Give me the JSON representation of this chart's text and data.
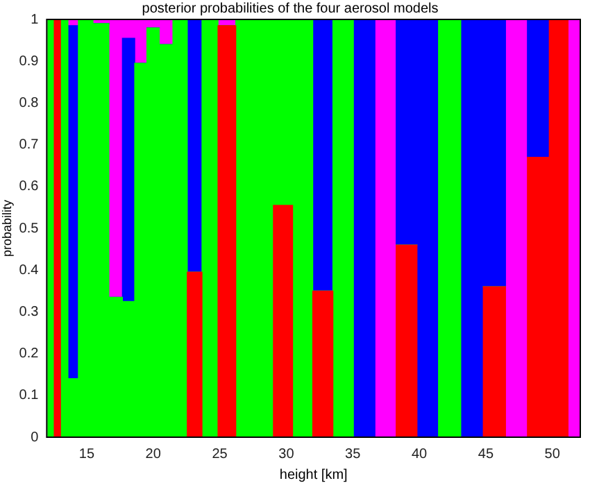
{
  "chart_data": {
    "type": "bar",
    "stacked": true,
    "title": "posterior probabilities of the four aerosol models",
    "xlabel": "height [km]",
    "ylabel": "probability",
    "x": [
      12.32,
      12.8,
      13.26,
      13.92,
      14.83,
      16.11,
      17.23,
      18.14,
      19.08,
      19.97,
      20.94,
      22.02,
      23.1,
      24.23,
      25.51,
      26.9,
      28.34,
      29.73,
      31.22,
      32.76,
      34.25,
      35.84,
      37.49,
      39.03,
      40.62,
      42.27,
      43.96,
      45.66,
      47.3,
      48.95,
      50.59,
      51.77
    ],
    "series": [
      {
        "color": "#ff0000",
        "values": [
          0,
          1,
          0,
          0,
          0,
          0,
          0,
          0,
          0,
          0,
          0,
          0,
          0.395,
          0,
          0.985,
          0,
          0,
          0.555,
          0,
          0.35,
          0,
          0,
          0,
          0.46,
          0,
          0,
          0,
          0.36,
          0,
          0.67,
          1,
          0
        ]
      },
      {
        "color": "#00ff00",
        "values": [
          1,
          0,
          1,
          0.14,
          1,
          0.99,
          0.335,
          0.325,
          0.895,
          0.98,
          0.94,
          1,
          0,
          1,
          0,
          1,
          1,
          0.445,
          1,
          0,
          1,
          0,
          0,
          0,
          0,
          1,
          0,
          0,
          0,
          0,
          0,
          0
        ]
      },
      {
        "color": "#0000ff",
        "values": [
          0,
          0,
          0,
          0.845,
          0,
          0,
          0,
          0.63,
          0,
          0,
          0,
          0,
          0.605,
          0,
          0,
          0,
          0,
          0,
          0,
          0.65,
          0,
          1,
          0,
          0.54,
          1,
          0,
          1,
          0.64,
          0,
          0.33,
          0,
          0
        ]
      },
      {
        "color": "#ff00ff",
        "values": [
          0,
          0,
          0,
          0.015,
          0,
          0.01,
          0.665,
          0.045,
          0.105,
          0.02,
          0.06,
          0,
          0,
          0,
          0.015,
          0,
          0,
          0,
          0,
          0,
          0,
          0,
          1,
          0,
          0,
          0,
          0,
          0,
          1,
          0,
          0,
          1
        ]
      }
    ],
    "xlim": [
      12,
      52.1
    ],
    "ylim": [
      0,
      1
    ],
    "xticks": [
      15,
      20,
      25,
      30,
      35,
      40,
      45,
      50
    ],
    "yticks": [
      0,
      0.1,
      0.2,
      0.3,
      0.4,
      0.5,
      0.6,
      0.7,
      0.8,
      0.9,
      1
    ],
    "grid": false,
    "legend": false
  }
}
